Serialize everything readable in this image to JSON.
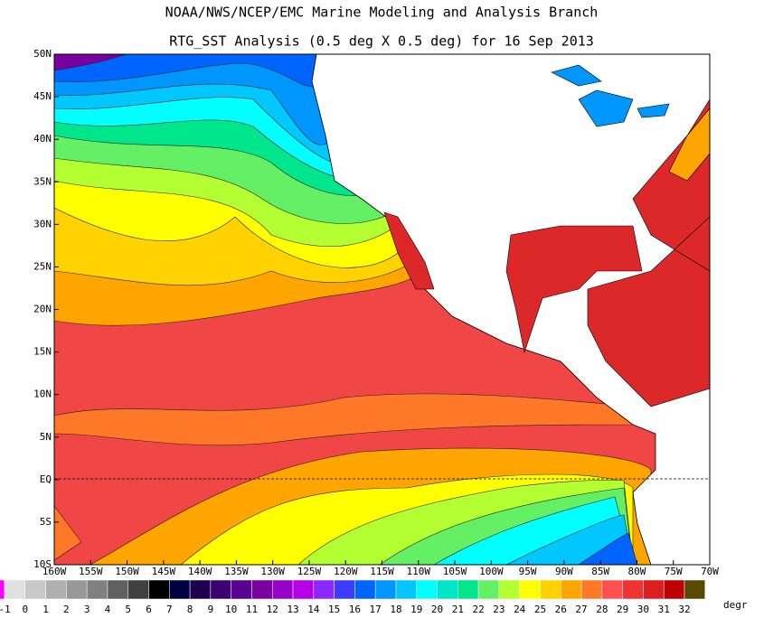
{
  "header": {
    "title": "NOAA/NWS/NCEP/EMC Marine Modeling and Analysis Branch",
    "subtitle": "RTG_SST Analysis (0.5 deg X 0.5 deg) for 16 Sep 2013"
  },
  "map": {
    "lat_labels": [
      "50N",
      "45N",
      "40N",
      "35N",
      "30N",
      "25N",
      "20N",
      "15N",
      "10N",
      "5N",
      "EQ",
      "5S",
      "10S"
    ],
    "lon_labels": [
      "160W",
      "155W",
      "150W",
      "145W",
      "140W",
      "135W",
      "130W",
      "125W",
      "120W",
      "115W",
      "110W",
      "105W",
      "100W",
      "95W",
      "90W",
      "85W",
      "80W",
      "75W",
      "70W"
    ]
  },
  "colorbar": {
    "labels": [
      -1,
      0,
      1,
      2,
      3,
      4,
      5,
      6,
      7,
      8,
      9,
      10,
      11,
      12,
      13,
      14,
      15,
      16,
      17,
      18,
      19,
      20,
      21,
      22,
      23,
      24,
      25,
      26,
      27,
      28,
      29,
      30,
      31,
      32
    ],
    "colors": [
      "#ff00ff",
      "#e0e0e0",
      "#c8c8c8",
      "#b0b0b0",
      "#989898",
      "#808080",
      "#606060",
      "#404040",
      "#000000",
      "#000040",
      "#1e0050",
      "#3c0070",
      "#5a0090",
      "#7800a0",
      "#9600c8",
      "#b400e6",
      "#8c28ff",
      "#3c3cff",
      "#0064ff",
      "#0096ff",
      "#00c8ff",
      "#00ffff",
      "#00e6c8",
      "#00e68c",
      "#64f064",
      "#b4ff32",
      "#ffff00",
      "#ffd200",
      "#ffa500",
      "#ff7828",
      "#ff5050",
      "#f03232",
      "#dc1e1e",
      "#be0000",
      "#5a4a00"
    ],
    "unit": "degr"
  }
}
